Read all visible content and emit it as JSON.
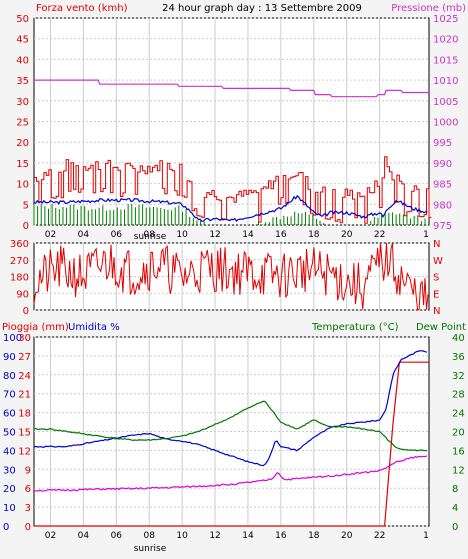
{
  "chart_data": [
    {
      "type": "line",
      "title": "24 hour graph day : 13 Settembre 2009",
      "y_left_label": "Forza vento (kmh)",
      "y_right_label": "Pressione (mb)",
      "x_ticks": [
        "02",
        "04",
        "06",
        "08",
        "10",
        "12",
        "14",
        "16",
        "18",
        "20",
        "22",
        "1"
      ],
      "x_extra_label": "sunrise",
      "ylim_left": [
        0,
        50
      ],
      "ylim_right": [
        975,
        1025
      ],
      "y_left_ticks": [
        0,
        5,
        10,
        15,
        20,
        25,
        30,
        35,
        40,
        45,
        50
      ],
      "y_right_ticks": [
        975,
        980,
        985,
        990,
        995,
        1000,
        1005,
        1010,
        1015,
        1020,
        1025
      ],
      "grid": true,
      "series": [
        {
          "key": "pressure",
          "axis": "right",
          "color": "#cc33cc",
          "shape": "step",
          "x": [
            0,
            3.9,
            4.0,
            8.7,
            8.8,
            11.4,
            11.5,
            15.5,
            15.6,
            17.0,
            17.1,
            18.0,
            18.1,
            20.8,
            20.9,
            21.3,
            21.4,
            22.3,
            22.4,
            24.0
          ],
          "y": [
            1010,
            1010,
            1009,
            1009,
            1008.5,
            1008.5,
            1008,
            1008,
            1007.5,
            1007.5,
            1006.5,
            1006.5,
            1006,
            1006,
            1006.5,
            1006.5,
            1007.5,
            1007.5,
            1007,
            1007
          ]
        },
        {
          "name": "Forza vento (kmh)",
          "key": "gust",
          "axis": "left",
          "color": "#e00000",
          "shape": "jagged",
          "x": [
            0,
            2,
            4,
            6,
            8,
            9,
            10,
            11,
            12,
            14,
            15,
            16,
            17,
            18,
            19,
            20,
            20.8,
            21.1,
            21.3,
            21.6,
            22,
            22.5,
            23,
            24
          ],
          "y": [
            10,
            13,
            13,
            12,
            13,
            12,
            7,
            6,
            5,
            7,
            11,
            11,
            7,
            6,
            6,
            6,
            8,
            10,
            14,
            11,
            10,
            8,
            7,
            7
          ]
        },
        {
          "key": "wind",
          "axis": "left",
          "color": "#0000cc",
          "shape": "line",
          "x": [
            0,
            2,
            4,
            6,
            8,
            9,
            9.6,
            10,
            11,
            12,
            13,
            14,
            15,
            16,
            17,
            17.5,
            18,
            19,
            20,
            21,
            21.2,
            21.5,
            22,
            23,
            24
          ],
          "y": [
            5.5,
            5.5,
            6,
            6,
            5.5,
            5,
            3,
            1,
            1.5,
            1,
            2,
            3,
            4,
            7,
            3,
            2,
            3,
            3,
            2,
            3,
            2,
            4,
            6,
            4,
            3
          ]
        },
        {
          "key": "wind_min",
          "axis": "left",
          "color": "#008000",
          "shape": "bars",
          "x": [
            0,
            2,
            4,
            6,
            8,
            9,
            10,
            11,
            12,
            13,
            14,
            15,
            16,
            17,
            18,
            19,
            20,
            21,
            22,
            23,
            24
          ],
          "y": [
            4.5,
            4.5,
            4,
            4.5,
            4,
            4,
            1,
            0,
            0,
            0,
            1,
            2,
            3,
            2,
            0,
            0,
            0,
            2,
            3,
            2,
            1
          ]
        }
      ]
    },
    {
      "type": "line",
      "ylim": [
        0,
        360
      ],
      "y_left_ticks": [
        0,
        90,
        180,
        270,
        360
      ],
      "y_right_ticks": [
        "N",
        "E",
        "S",
        "W",
        "N"
      ],
      "x_ticks": [
        "02",
        "04",
        "06",
        "08",
        "10",
        "12",
        "14",
        "16",
        "18",
        "20",
        "22",
        "1"
      ],
      "grid": true,
      "series": [
        {
          "key": "direction",
          "color": "#e00000",
          "shape": "jagged",
          "x": [
            0,
            1.5,
            3,
            4.5,
            6,
            7.5,
            9,
            10.5,
            12,
            13.5,
            15,
            16.5,
            18,
            19,
            20,
            21,
            21.5,
            22,
            23,
            24
          ],
          "y": [
            150,
            220,
            180,
            260,
            200,
            250,
            180,
            230,
            210,
            200,
            180,
            220,
            190,
            150,
            120,
            250,
            280,
            210,
            90,
            40
          ]
        }
      ]
    },
    {
      "type": "line",
      "y_left_label_1": "Pioggia (mm)",
      "y_left_label_2": "Umidita %",
      "y_right_label_1": "Temperatura (°C)",
      "y_right_label_2": "Dew Point",
      "x_ticks": [
        "02",
        "04",
        "06",
        "08",
        "10",
        "12",
        "14",
        "16",
        "18",
        "20",
        "22",
        "1"
      ],
      "x_extra_label": "sunrise",
      "ylim_humidity": [
        0,
        100
      ],
      "ylim_rain": [
        0,
        30
      ],
      "ylim_temp": [
        0,
        40
      ],
      "y_humidity_ticks": [
        0,
        10,
        20,
        30,
        40,
        50,
        60,
        70,
        80,
        90,
        100
      ],
      "y_rain_ticks": [
        0,
        3,
        6,
        9,
        12,
        15,
        18,
        21,
        24,
        27,
        30
      ],
      "y_temp_ticks": [
        0,
        4,
        8,
        12,
        16,
        20,
        24,
        28,
        32,
        36,
        40
      ],
      "grid": true,
      "series": [
        {
          "name": "Pioggia (mm)",
          "key": "rain",
          "axis": "rain",
          "color": "#e00000",
          "shape": "line",
          "x": [
            0,
            21.0,
            21.3,
            21.8,
            22.2,
            23.5,
            24
          ],
          "y": [
            0,
            0,
            0,
            16,
            26,
            26,
            26
          ]
        },
        {
          "name": "Umidita %",
          "key": "humidity",
          "axis": "humidity",
          "color": "#0000cc",
          "shape": "line",
          "x": [
            0,
            2,
            4,
            6,
            7,
            8,
            9,
            10,
            11,
            12,
            13,
            14,
            14.3,
            14.7,
            15,
            16,
            17,
            18,
            19,
            20,
            21,
            21.4,
            21.8,
            22.3,
            23,
            23.5,
            24
          ],
          "y": [
            42,
            42,
            45,
            48,
            49,
            46,
            45,
            43,
            40,
            37,
            34,
            32,
            36,
            46,
            42,
            40,
            47,
            52,
            54,
            55,
            56,
            62,
            80,
            88,
            91,
            93,
            92
          ]
        },
        {
          "name": "Temperatura (°C)",
          "key": "temperature",
          "axis": "temp",
          "color": "#007700",
          "shape": "line",
          "x": [
            0,
            1,
            2,
            3,
            4,
            5,
            6,
            7,
            8,
            9,
            10,
            11,
            12,
            13,
            14,
            15,
            16,
            17,
            17.5,
            18,
            19,
            20,
            21,
            21.3,
            22,
            23,
            24
          ],
          "y": [
            20.5,
            20.5,
            20,
            19.5,
            19,
            18.5,
            18.2,
            18.2,
            18.5,
            19,
            20,
            21.5,
            23,
            25,
            26.5,
            22,
            20.5,
            22.5,
            21.5,
            21,
            21,
            20.5,
            20,
            19,
            16.5,
            16,
            16
          ]
        },
        {
          "name": "Dew Point",
          "key": "dewpoint",
          "axis": "temp",
          "color": "#dd00dd",
          "shape": "line",
          "x": [
            0,
            2,
            4,
            6,
            8,
            10,
            12,
            13,
            14,
            14.5,
            14.8,
            15.2,
            16,
            18,
            20,
            21,
            21.5,
            22,
            23,
            24
          ],
          "y": [
            7.5,
            7.6,
            7.8,
            7.9,
            8.1,
            8.4,
            8.8,
            9.2,
            9.6,
            10,
            11.5,
            9.8,
            10,
            10.6,
            11.3,
            11.7,
            12.5,
            13.5,
            14.5,
            14.8
          ]
        }
      ]
    }
  ]
}
